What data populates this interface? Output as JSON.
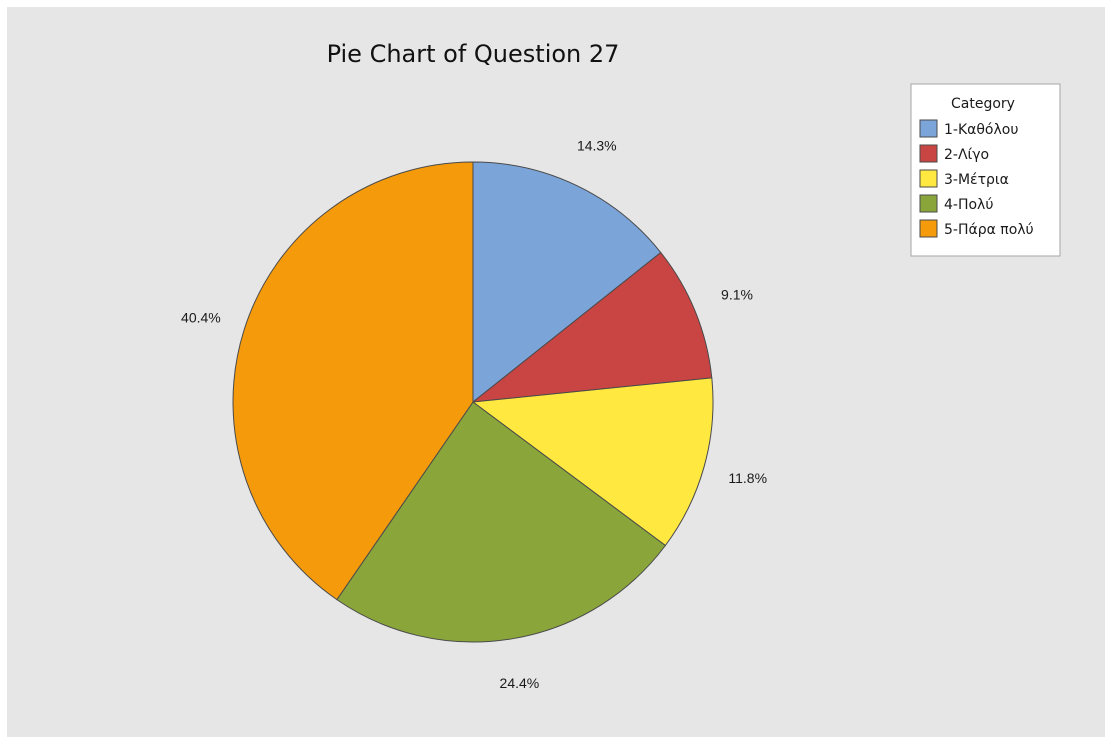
{
  "chart_data": {
    "type": "pie",
    "title": "Pie Chart of Question 27",
    "legend_title": "Category",
    "legend_position": "top-right",
    "categories": [
      "1-Καθόλου",
      "2-Λίγο",
      "3-Μέτρια",
      "4-Πολύ",
      "5-Πάρα πολύ"
    ],
    "values": [
      14.3,
      9.1,
      11.8,
      24.4,
      40.4
    ],
    "labels": [
      "14.3%",
      "9.1%",
      "11.8%",
      "24.4%",
      "40.4%"
    ],
    "colors": [
      "#7ba4d9",
      "#c94544",
      "#ffe940",
      "#8aa63b",
      "#f49a0b"
    ],
    "start_angle": "12 o'clock",
    "direction": "clockwise"
  }
}
